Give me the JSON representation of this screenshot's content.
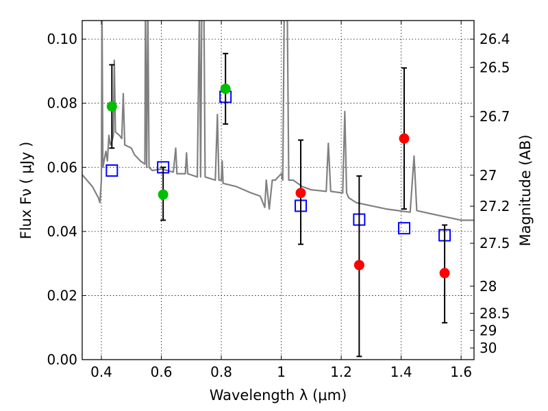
{
  "chart_data": {
    "type": "scatter",
    "xlabel": "Wavelength  λ (μm)",
    "ylabel": "Flux  Fν ( μJy )",
    "ylabel_right": "Magnitude (AB)",
    "xlim": [
      0.336,
      1.643
    ],
    "ylim": [
      0,
      0.1058
    ],
    "grid": true,
    "x_ticks": [
      0.4,
      0.6,
      0.8,
      1.0,
      1.2,
      1.4,
      1.6
    ],
    "x_tick_labels": [
      "0.4",
      "0.6",
      "0.8",
      "1",
      "1.2",
      "1.4",
      "1.6"
    ],
    "y_ticks": [
      0,
      0.02,
      0.04,
      0.06,
      0.08,
      0.1
    ],
    "y_tick_labels": [
      "0.00",
      "0.02",
      "0.04",
      "0.06",
      "0.08",
      "0.10"
    ],
    "right_ticks_mag": [
      26.4,
      26.5,
      26.7,
      27,
      27.2,
      27.5,
      28,
      28.5,
      29,
      30
    ],
    "right_tick_labels": [
      "26.4",
      "26.5",
      "26.7",
      "27",
      "27.2",
      "27.5",
      "28",
      "28.5",
      "29",
      "30"
    ],
    "colors": {
      "spectrum": "#808080",
      "green": "#00bf00",
      "red": "#ff0000",
      "model": "#0000ff",
      "error": "#000000"
    },
    "series": [
      {
        "name": "observed-green",
        "marker": "circle",
        "color": "#00bf00",
        "x": [
          0.435,
          0.606,
          0.814
        ],
        "y": [
          0.079,
          0.0515,
          0.0845
        ],
        "yerr_low": [
          0.066,
          0.0435,
          0.0735
        ],
        "yerr_high": [
          0.092,
          0.06,
          0.0955
        ]
      },
      {
        "name": "observed-red",
        "marker": "circle",
        "color": "#ff0000",
        "x": [
          1.065,
          1.26,
          1.41,
          1.545
        ],
        "y": [
          0.052,
          0.0295,
          0.069,
          0.027
        ],
        "yerr_low": [
          0.036,
          0.001,
          0.047,
          0.0115
        ],
        "yerr_high": [
          0.0685,
          0.0573,
          0.091,
          0.042
        ]
      },
      {
        "name": "model-photometry",
        "marker": "square",
        "color": "#0000ff",
        "x": [
          0.435,
          0.606,
          0.814,
          1.065,
          1.26,
          1.41,
          1.545
        ],
        "y": [
          0.059,
          0.06,
          0.082,
          0.048,
          0.0437,
          0.041,
          0.0388
        ]
      },
      {
        "name": "model-spectrum",
        "type": "line",
        "color": "#808080",
        "points": [
          [
            0.336,
            0.0577
          ],
          [
            0.37,
            0.054
          ],
          [
            0.39,
            0.0505
          ],
          [
            0.395,
            0.049
          ],
          [
            0.4,
            0.056
          ],
          [
            0.402,
            0.11
          ],
          [
            0.405,
            0.06
          ],
          [
            0.415,
            0.065
          ],
          [
            0.42,
            0.062
          ],
          [
            0.425,
            0.07
          ],
          [
            0.43,
            0.067
          ],
          [
            0.435,
            0.068
          ],
          [
            0.44,
            0.07
          ],
          [
            0.443,
            0.0934
          ],
          [
            0.447,
            0.071
          ],
          [
            0.46,
            0.07
          ],
          [
            0.468,
            0.069
          ],
          [
            0.473,
            0.083
          ],
          [
            0.478,
            0.067
          ],
          [
            0.5,
            0.066
          ],
          [
            0.51,
            0.064
          ],
          [
            0.53,
            0.062
          ],
          [
            0.545,
            0.061
          ],
          [
            0.547,
            0.11
          ],
          [
            0.551,
            0.06
          ],
          [
            0.555,
            0.11
          ],
          [
            0.559,
            0.06
          ],
          [
            0.57,
            0.059
          ],
          [
            0.6,
            0.0595
          ],
          [
            0.64,
            0.0585
          ],
          [
            0.648,
            0.066
          ],
          [
            0.652,
            0.058
          ],
          [
            0.68,
            0.058
          ],
          [
            0.684,
            0.0645
          ],
          [
            0.688,
            0.058
          ],
          [
            0.72,
            0.057
          ],
          [
            0.727,
            0.11
          ],
          [
            0.731,
            0.057
          ],
          [
            0.735,
            0.11
          ],
          [
            0.742,
            0.11
          ],
          [
            0.746,
            0.057
          ],
          [
            0.78,
            0.056
          ],
          [
            0.787,
            0.0765
          ],
          [
            0.792,
            0.056
          ],
          [
            0.8,
            0.056
          ],
          [
            0.803,
            0.062
          ],
          [
            0.806,
            0.055
          ],
          [
            0.85,
            0.054
          ],
          [
            0.9,
            0.052
          ],
          [
            0.93,
            0.051
          ],
          [
            0.945,
            0.0475
          ],
          [
            0.95,
            0.056
          ],
          [
            0.96,
            0.047
          ],
          [
            0.97,
            0.056
          ],
          [
            0.98,
            0.056
          ],
          [
            1.0,
            0.058
          ],
          [
            1.005,
            0.056
          ],
          [
            1.01,
            0.11
          ],
          [
            1.02,
            0.11
          ],
          [
            1.025,
            0.056
          ],
          [
            1.04,
            0.056
          ],
          [
            1.07,
            0.054
          ],
          [
            1.1,
            0.053
          ],
          [
            1.15,
            0.0525
          ],
          [
            1.157,
            0.0675
          ],
          [
            1.165,
            0.0525
          ],
          [
            1.205,
            0.052
          ],
          [
            1.212,
            0.0774
          ],
          [
            1.218,
            0.052
          ],
          [
            1.225,
            0.0505
          ],
          [
            1.25,
            0.049
          ],
          [
            1.3,
            0.048
          ],
          [
            1.35,
            0.047
          ],
          [
            1.43,
            0.046
          ],
          [
            1.443,
            0.0635
          ],
          [
            1.452,
            0.0465
          ],
          [
            1.5,
            0.0455
          ],
          [
            1.55,
            0.0445
          ],
          [
            1.6,
            0.0435
          ],
          [
            1.643,
            0.0435
          ]
        ]
      }
    ]
  }
}
